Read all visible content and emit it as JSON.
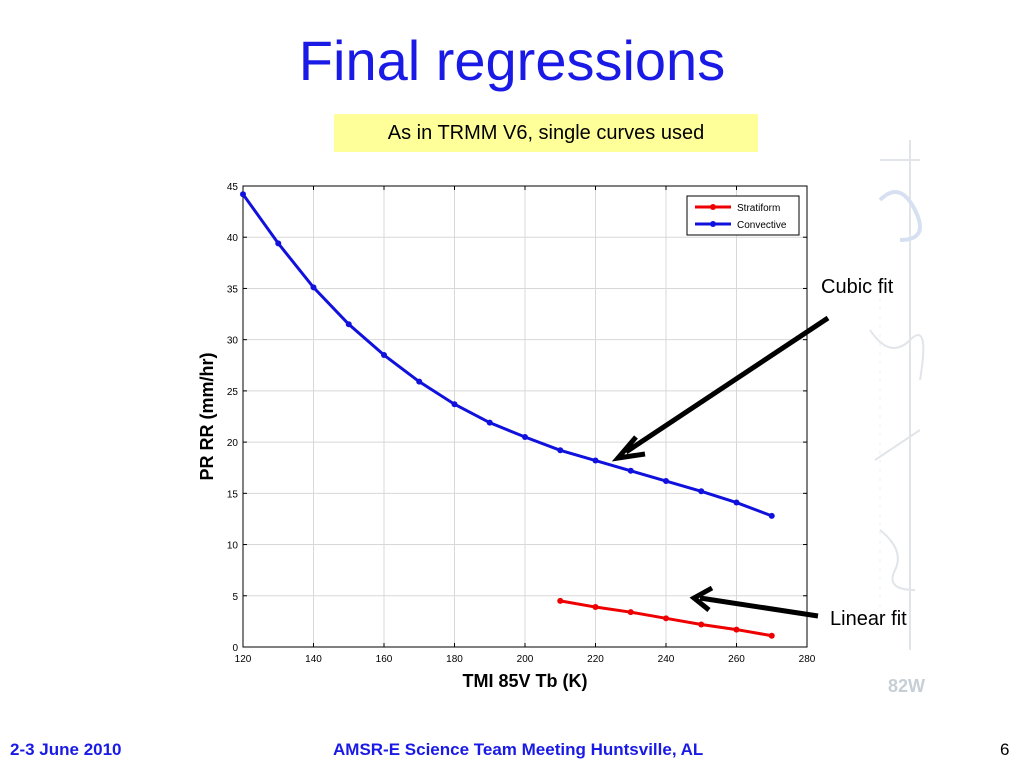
{
  "slide": {
    "title": "Final regressions",
    "callout": "As in TRMM V6, single curves used",
    "annotation_cubic": "Cubic fit",
    "annotation_linear": "Linear fit",
    "watermark_text": "82W",
    "footer_date": "2-3 June 2010",
    "footer_meeting": "AMSR-E Science Team Meeting  Huntsville, AL",
    "page_number": "6"
  },
  "colors": {
    "title": "#1a1ae6",
    "callout_bg": "#ffff99",
    "stratiform": "#ee0000",
    "convective": "#1111dd"
  },
  "chart_data": {
    "type": "line",
    "xlabel": "TMI 85V Tb (K)",
    "ylabel": "PR RR (mm/hr)",
    "xlim": [
      120,
      280
    ],
    "ylim": [
      0,
      45
    ],
    "xticks": [
      120,
      140,
      160,
      180,
      200,
      220,
      240,
      260,
      280
    ],
    "yticks": [
      0,
      5,
      10,
      15,
      20,
      25,
      30,
      35,
      40,
      45
    ],
    "grid": true,
    "legend_position": "top-right",
    "series": [
      {
        "name": "Stratiform",
        "color": "#ee0000",
        "x": [
          210,
          220,
          230,
          240,
          250,
          260,
          270
        ],
        "y": [
          4.5,
          3.9,
          3.4,
          2.8,
          2.2,
          1.7,
          1.1
        ]
      },
      {
        "name": "Convective",
        "color": "#1111dd",
        "x": [
          120,
          130,
          140,
          150,
          160,
          170,
          180,
          190,
          200,
          210,
          220,
          230,
          240,
          250,
          260,
          270
        ],
        "y": [
          44.2,
          39.4,
          35.1,
          31.5,
          28.5,
          25.9,
          23.7,
          21.9,
          20.5,
          19.2,
          18.2,
          17.2,
          16.2,
          15.2,
          14.1,
          12.8
        ]
      }
    ]
  }
}
